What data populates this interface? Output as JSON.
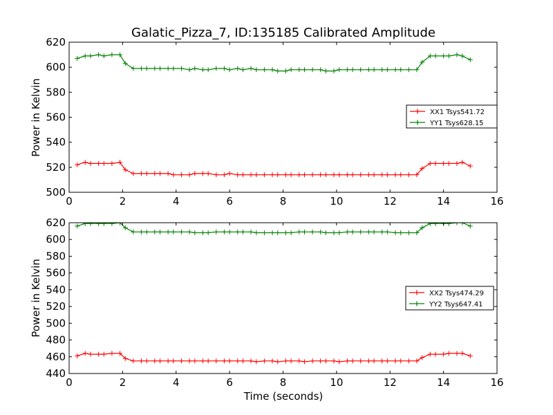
{
  "title": "Galatic_Pizza_7, ID:135185 Calibrated Amplitude",
  "xlabel": "Time (seconds)",
  "ylabel": "Power in Kelvin",
  "colors": {
    "red": "#ff0000",
    "green": "#008000",
    "axes": "#000000"
  },
  "chart_data": [
    {
      "type": "line",
      "title": "Galatic_Pizza_7, ID:135185 Calibrated Amplitude",
      "xlabel": "",
      "ylabel": "Power in Kelvin",
      "xlim": [
        0,
        16
      ],
      "ylim": [
        500,
        620
      ],
      "xticks": [
        0,
        2,
        4,
        6,
        8,
        10,
        12,
        14,
        16
      ],
      "yticks": [
        500,
        520,
        540,
        560,
        580,
        600,
        620
      ],
      "grid": false,
      "legend_position": "right",
      "x": [
        0.3,
        0.6,
        0.8,
        1.1,
        1.3,
        1.6,
        1.9,
        2.1,
        2.4,
        2.7,
        2.9,
        3.2,
        3.4,
        3.7,
        3.9,
        4.2,
        4.5,
        4.7,
        5.0,
        5.2,
        5.5,
        5.8,
        6.0,
        6.3,
        6.5,
        6.8,
        7.0,
        7.3,
        7.6,
        7.8,
        8.1,
        8.3,
        8.6,
        8.8,
        9.1,
        9.4,
        9.6,
        9.9,
        10.1,
        10.4,
        10.6,
        10.9,
        11.2,
        11.4,
        11.7,
        11.9,
        12.2,
        12.4,
        12.7,
        13.0,
        13.2,
        13.5,
        13.7,
        14.0,
        14.2,
        14.5,
        14.7,
        15.0
      ],
      "series": [
        {
          "name": "XX1 Tsys541.72",
          "color": "#ff0000",
          "values": [
            522,
            524,
            523,
            523,
            523,
            523,
            524,
            518,
            515,
            515,
            515,
            515,
            515,
            515,
            514,
            514,
            514,
            515,
            515,
            515,
            514,
            514,
            515,
            514,
            514,
            514,
            514,
            514,
            514,
            514,
            514,
            514,
            514,
            514,
            514,
            514,
            514,
            514,
            514,
            514,
            514,
            514,
            514,
            514,
            514,
            514,
            514,
            514,
            514,
            514,
            519,
            523,
            523,
            523,
            523,
            523,
            524,
            521
          ]
        },
        {
          "name": "YY1 Tsys628.15",
          "color": "#008000",
          "values": [
            607,
            609,
            609,
            610,
            609,
            610,
            610,
            603,
            599,
            599,
            599,
            599,
            599,
            599,
            599,
            599,
            598,
            599,
            598,
            598,
            599,
            599,
            598,
            599,
            598,
            599,
            598,
            598,
            598,
            597,
            597,
            598,
            598,
            598,
            598,
            598,
            597,
            597,
            598,
            598,
            598,
            598,
            598,
            598,
            598,
            598,
            598,
            598,
            598,
            598,
            604,
            609,
            609,
            609,
            609,
            610,
            609,
            606
          ]
        }
      ]
    },
    {
      "type": "line",
      "title": "",
      "xlabel": "Time (seconds)",
      "ylabel": "Power in Kelvin",
      "xlim": [
        0,
        16
      ],
      "ylim": [
        440,
        620
      ],
      "xticks": [
        0,
        2,
        4,
        6,
        8,
        10,
        12,
        14,
        16
      ],
      "yticks": [
        440,
        460,
        480,
        500,
        520,
        540,
        560,
        580,
        600,
        620
      ],
      "grid": false,
      "legend_position": "right",
      "x": [
        0.3,
        0.6,
        0.8,
        1.1,
        1.3,
        1.6,
        1.9,
        2.1,
        2.4,
        2.7,
        2.9,
        3.2,
        3.4,
        3.7,
        3.9,
        4.2,
        4.5,
        4.7,
        5.0,
        5.2,
        5.5,
        5.8,
        6.0,
        6.3,
        6.5,
        6.8,
        7.0,
        7.3,
        7.6,
        7.8,
        8.1,
        8.3,
        8.6,
        8.8,
        9.1,
        9.4,
        9.6,
        9.9,
        10.1,
        10.4,
        10.6,
        10.9,
        11.2,
        11.4,
        11.7,
        11.9,
        12.2,
        12.4,
        12.7,
        13.0,
        13.2,
        13.5,
        13.7,
        14.0,
        14.2,
        14.5,
        14.7,
        15.0
      ],
      "series": [
        {
          "name": "XX2 Tsys474.29",
          "color": "#ff0000",
          "values": [
            461,
            464,
            463,
            463,
            463,
            464,
            464,
            458,
            455,
            455,
            455,
            455,
            455,
            455,
            455,
            455,
            455,
            455,
            455,
            455,
            455,
            455,
            455,
            455,
            455,
            455,
            454,
            455,
            455,
            454,
            455,
            455,
            455,
            454,
            455,
            455,
            455,
            455,
            454,
            455,
            455,
            455,
            455,
            455,
            455,
            455,
            455,
            455,
            455,
            455,
            459,
            463,
            463,
            463,
            464,
            464,
            464,
            461
          ]
        },
        {
          "name": "YY2 Tsys647.41",
          "color": "#008000",
          "values": [
            616,
            619,
            619,
            619,
            619,
            619,
            620,
            614,
            609,
            609,
            609,
            609,
            609,
            609,
            609,
            609,
            609,
            608,
            608,
            608,
            609,
            609,
            609,
            609,
            609,
            609,
            608,
            608,
            608,
            608,
            608,
            608,
            609,
            609,
            609,
            609,
            608,
            608,
            608,
            609,
            609,
            609,
            609,
            609,
            609,
            609,
            608,
            608,
            608,
            608,
            614,
            619,
            619,
            619,
            619,
            620,
            620,
            616
          ]
        }
      ]
    }
  ]
}
